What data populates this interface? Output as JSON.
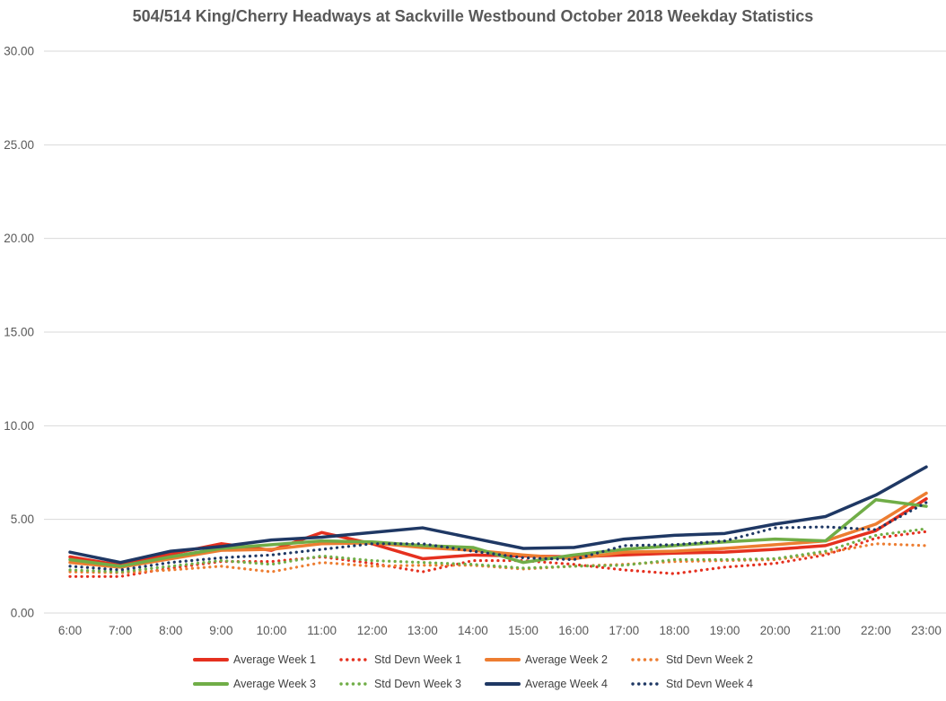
{
  "chart_data": {
    "type": "line",
    "title": "504/514 King/Cherry Headways at Sackville Westbound October 2018 Weekday Statistics",
    "xlabel": "",
    "ylabel": "",
    "ylim": [
      0,
      30
    ],
    "yticks": [
      0,
      5,
      10,
      15,
      20,
      25,
      30
    ],
    "ytick_labels": [
      "0.00",
      "5.00",
      "10.00",
      "15.00",
      "20.00",
      "25.00",
      "30.00"
    ],
    "grid": "horizontal",
    "gridline_color": "#d9d9d9",
    "axis_text_color": "#595959",
    "legend_position": "bottom",
    "legend_rows": [
      [
        0,
        1,
        2,
        3
      ],
      [
        4,
        5,
        6,
        7
      ]
    ],
    "categories": [
      "6:00",
      "7:00",
      "8:00",
      "9:00",
      "10:00",
      "11:00",
      "12:00",
      "13:00",
      "14:00",
      "15:00",
      "16:00",
      "17:00",
      "18:00",
      "19:00",
      "20:00",
      "21:00",
      "22:00",
      "23:00"
    ],
    "series": [
      {
        "name": "Average Week 1",
        "color": "#e5301f",
        "line_style": "solid",
        "values": [
          3.0,
          2.55,
          3.15,
          3.7,
          3.35,
          4.3,
          3.7,
          2.9,
          3.1,
          3.05,
          3.0,
          3.1,
          3.2,
          3.25,
          3.4,
          3.6,
          4.4,
          6.1
        ]
      },
      {
        "name": "Std Devn Week 1",
        "color": "#e5301f",
        "line_style": "dotted",
        "values": [
          1.95,
          1.95,
          2.4,
          2.75,
          2.75,
          3.0,
          2.65,
          2.2,
          2.8,
          2.8,
          2.6,
          2.3,
          2.1,
          2.45,
          2.65,
          3.1,
          4.0,
          4.35
        ]
      },
      {
        "name": "Average Week 2",
        "color": "#ed7d31",
        "line_style": "solid",
        "values": [
          2.7,
          2.45,
          2.9,
          3.35,
          3.4,
          3.7,
          3.75,
          3.5,
          3.35,
          3.1,
          2.9,
          3.25,
          3.3,
          3.45,
          3.65,
          3.85,
          4.75,
          6.4
        ]
      },
      {
        "name": "Std Devn Week 2",
        "color": "#ed7d31",
        "line_style": "dotted",
        "values": [
          2.2,
          2.15,
          2.3,
          2.5,
          2.2,
          2.7,
          2.5,
          2.55,
          2.55,
          2.35,
          2.5,
          2.6,
          2.75,
          2.8,
          2.85,
          3.2,
          3.7,
          3.6
        ]
      },
      {
        "name": "Average Week 3",
        "color": "#70ad47",
        "line_style": "solid",
        "values": [
          2.85,
          2.5,
          3.0,
          3.45,
          3.65,
          3.85,
          3.8,
          3.6,
          3.5,
          2.7,
          3.1,
          3.4,
          3.6,
          3.8,
          3.95,
          3.85,
          6.05,
          5.7
        ]
      },
      {
        "name": "Std Devn Week 3",
        "color": "#70ad47",
        "line_style": "dotted",
        "values": [
          2.3,
          2.2,
          2.5,
          2.8,
          2.6,
          3.05,
          2.8,
          2.7,
          2.6,
          2.4,
          2.5,
          2.55,
          2.85,
          2.85,
          2.9,
          3.3,
          4.15,
          4.5
        ]
      },
      {
        "name": "Average Week 4",
        "color": "#1f3864",
        "line_style": "solid",
        "values": [
          3.25,
          2.7,
          3.3,
          3.55,
          3.9,
          4.05,
          4.3,
          4.55,
          4.0,
          3.45,
          3.5,
          3.95,
          4.15,
          4.25,
          4.75,
          5.15,
          6.3,
          7.8
        ]
      },
      {
        "name": "Std Devn Week 4",
        "color": "#1f3864",
        "line_style": "dotted",
        "values": [
          2.5,
          2.3,
          2.7,
          2.95,
          3.1,
          3.4,
          3.7,
          3.7,
          3.3,
          2.95,
          2.85,
          3.6,
          3.65,
          3.85,
          4.55,
          4.6,
          4.45,
          5.9
        ]
      }
    ]
  }
}
